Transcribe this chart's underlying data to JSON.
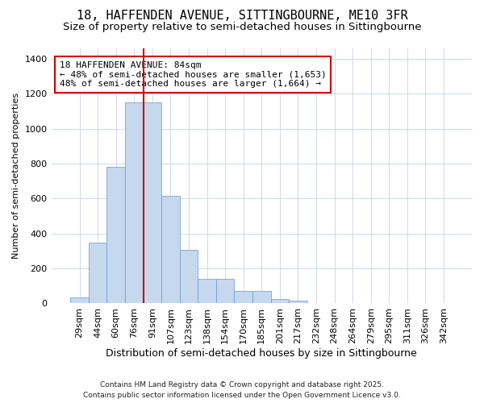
{
  "title": "18, HAFFENDEN AVENUE, SITTINGBOURNE, ME10 3FR",
  "subtitle": "Size of property relative to semi-detached houses in Sittingbourne",
  "xlabel": "Distribution of semi-detached houses by size in Sittingbourne",
  "ylabel": "Number of semi-detached properties",
  "categories": [
    "29sqm",
    "44sqm",
    "60sqm",
    "76sqm",
    "91sqm",
    "107sqm",
    "123sqm",
    "138sqm",
    "154sqm",
    "170sqm",
    "185sqm",
    "201sqm",
    "217sqm",
    "232sqm",
    "248sqm",
    "264sqm",
    "279sqm",
    "295sqm",
    "311sqm",
    "326sqm",
    "342sqm"
  ],
  "values": [
    35,
    350,
    780,
    1150,
    1150,
    615,
    305,
    140,
    140,
    70,
    70,
    25,
    15,
    0,
    0,
    0,
    0,
    0,
    0,
    0,
    0
  ],
  "bar_color": "#c5d8ed",
  "bar_edge_color": "#6699cc",
  "vline_x": 3.5,
  "vline_color": "#cc0000",
  "annotation_text": "18 HAFFENDEN AVENUE: 84sqm\n← 48% of semi-detached houses are smaller (1,653)\n48% of semi-detached houses are larger (1,664) →",
  "annotation_box_facecolor": "#ffffff",
  "annotation_box_edgecolor": "#cc0000",
  "ylim": [
    0,
    1460
  ],
  "background_color": "#ffffff",
  "plot_bg_color": "#ffffff",
  "footer": "Contains HM Land Registry data © Crown copyright and database right 2025.\nContains public sector information licensed under the Open Government Licence v3.0.",
  "title_fontsize": 11,
  "subtitle_fontsize": 9.5,
  "xlabel_fontsize": 9,
  "ylabel_fontsize": 8,
  "tick_fontsize": 8,
  "annotation_fontsize": 8,
  "footer_fontsize": 6.5
}
